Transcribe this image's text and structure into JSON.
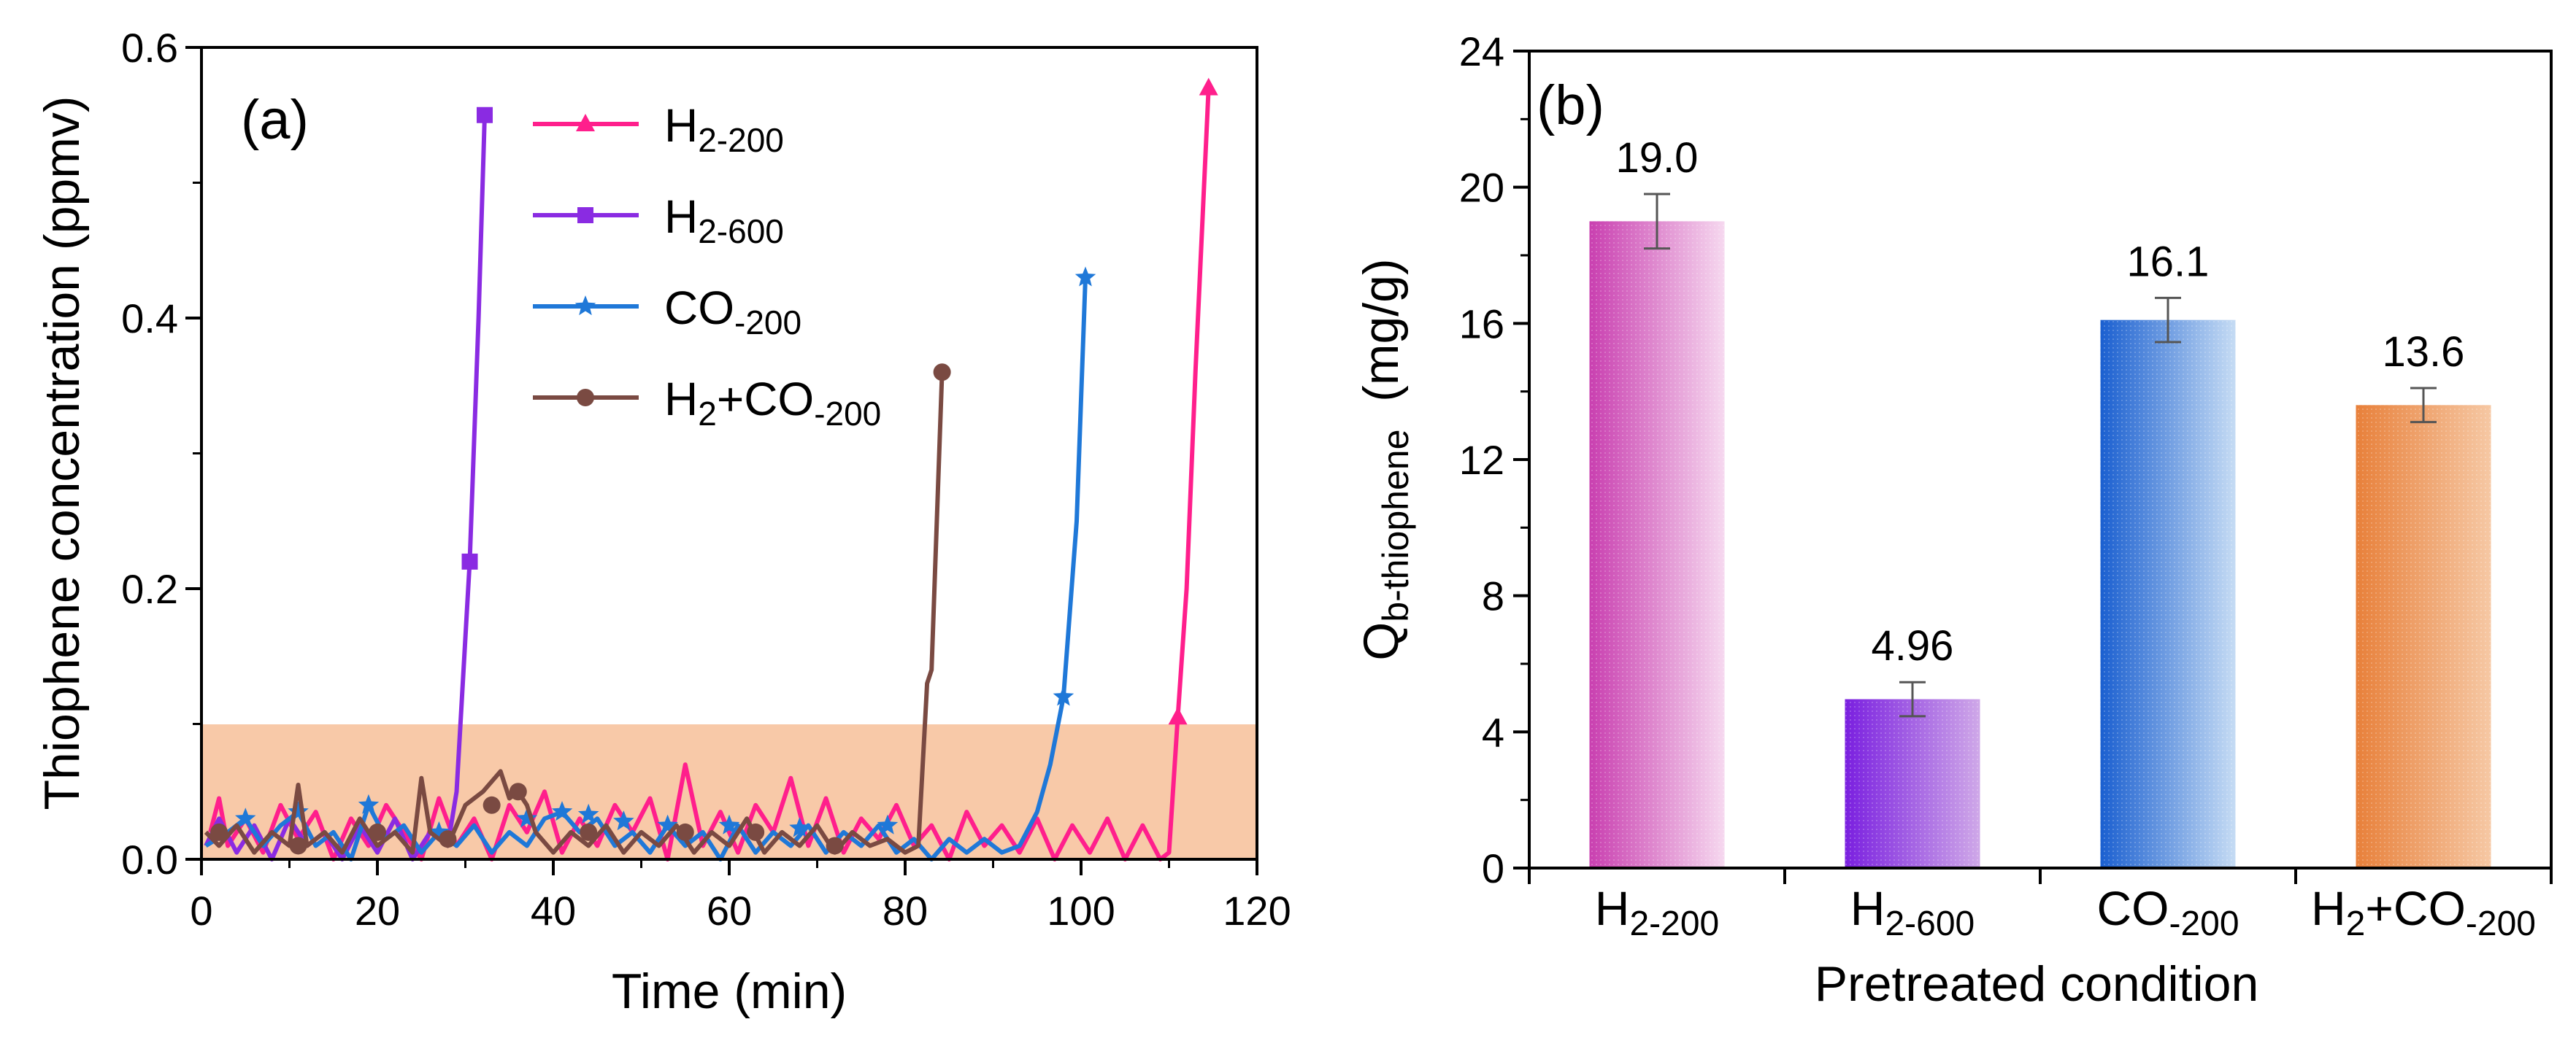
{
  "chart_data": [
    {
      "panel": "(a)",
      "type": "line",
      "xlabel": "Time (min)",
      "ylabel": "Thiophene concentration (ppmv)",
      "xlim": [
        0,
        120
      ],
      "ylim": [
        0,
        0.6
      ],
      "xticks": [
        "0",
        "20",
        "40",
        "60",
        "80",
        "100",
        "120"
      ],
      "yticks": [
        "0.0",
        "0.2",
        "0.4",
        "0.6"
      ],
      "shaded_band": {
        "y_from": 0,
        "y_to": 0.1,
        "color": "#f8c9a8"
      },
      "legend_position": "top-center",
      "series": [
        {
          "name": "H2-200",
          "legend": {
            "base": "H",
            "sub": "2-200"
          },
          "color": "#ff1f8c",
          "marker": "triangle",
          "noise": [
            [
              1,
              0.02
            ],
            [
              2,
              0.045
            ],
            [
              3,
              0.01
            ],
            [
              5,
              0.03
            ],
            [
              7,
              0.005
            ],
            [
              9,
              0.04
            ],
            [
              11,
              0.015
            ],
            [
              13,
              0.035
            ],
            [
              15,
              0.0
            ],
            [
              17,
              0.03
            ],
            [
              19,
              0.01
            ],
            [
              21,
              0.04
            ],
            [
              23,
              0.02
            ],
            [
              25,
              0.0
            ],
            [
              27,
              0.045
            ],
            [
              29,
              0.01
            ],
            [
              31,
              0.03
            ],
            [
              33,
              0.0
            ],
            [
              35,
              0.04
            ],
            [
              37,
              0.02
            ],
            [
              39,
              0.05
            ],
            [
              41,
              0.005
            ],
            [
              43,
              0.03
            ],
            [
              45,
              0.01
            ],
            [
              47,
              0.04
            ],
            [
              49,
              0.02
            ],
            [
              51,
              0.045
            ],
            [
              53,
              0.0
            ],
            [
              55,
              0.07
            ],
            [
              57,
              0.01
            ],
            [
              59,
              0.035
            ],
            [
              61,
              0.005
            ],
            [
              63,
              0.04
            ],
            [
              65,
              0.02
            ],
            [
              67,
              0.06
            ],
            [
              69,
              0.01
            ],
            [
              71,
              0.045
            ],
            [
              73,
              0.005
            ],
            [
              75,
              0.03
            ],
            [
              77,
              0.015
            ],
            [
              79,
              0.04
            ],
            [
              81,
              0.01
            ],
            [
              83,
              0.025
            ],
            [
              85,
              0.0
            ],
            [
              87,
              0.035
            ],
            [
              89,
              0.01
            ],
            [
              91,
              0.025
            ],
            [
              93,
              0.005
            ],
            [
              95,
              0.03
            ],
            [
              97,
              0.0
            ],
            [
              99,
              0.025
            ],
            [
              101,
              0.005
            ],
            [
              103,
              0.03
            ],
            [
              105,
              0.0
            ],
            [
              107,
              0.025
            ],
            [
              109,
              0.0
            ],
            [
              110,
              0.005
            ]
          ],
          "points": [
            [
              111,
              0.105
            ],
            [
              114.5,
              0.57
            ]
          ],
          "smooth": [
            [
              110,
              0.005
            ],
            [
              111,
              0.105
            ],
            [
              112,
              0.2
            ],
            [
              113,
              0.36
            ],
            [
              114.5,
              0.57
            ]
          ]
        },
        {
          "name": "H2-600",
          "legend": {
            "base": "H",
            "sub": "2-600"
          },
          "color": "#8a2be2",
          "marker": "square",
          "noise": [
            [
              0.5,
              0.01
            ],
            [
              2,
              0.03
            ],
            [
              4,
              0.005
            ],
            [
              6,
              0.025
            ],
            [
              8,
              0.0
            ],
            [
              10,
              0.03
            ],
            [
              12,
              0.01
            ],
            [
              14,
              0.02
            ],
            [
              16,
              0.0
            ],
            [
              18,
              0.025
            ],
            [
              20,
              0.005
            ],
            [
              22,
              0.03
            ],
            [
              24,
              0.0
            ],
            [
              26,
              0.02
            ],
            [
              28,
              0.01
            ]
          ],
          "points": [
            [
              30.5,
              0.22
            ],
            [
              32.2,
              0.55
            ]
          ],
          "smooth": [
            [
              28,
              0.01
            ],
            [
              29,
              0.05
            ],
            [
              30.5,
              0.22
            ],
            [
              31.5,
              0.4
            ],
            [
              32.2,
              0.55
            ]
          ]
        },
        {
          "name": "CO-200",
          "legend": {
            "base": "CO",
            "sub": "-200"
          },
          "color": "#1f78d8",
          "marker": "star",
          "noise": [
            [
              0.5,
              0.01
            ],
            [
              3,
              0.02
            ],
            [
              5,
              0.03
            ],
            [
              7,
              0.01
            ],
            [
              9,
              0.025
            ],
            [
              11,
              0.035
            ],
            [
              13,
              0.01
            ],
            [
              15,
              0.02
            ],
            [
              17,
              0.0
            ],
            [
              19,
              0.04
            ],
            [
              21,
              0.015
            ],
            [
              23,
              0.025
            ],
            [
              25,
              0.005
            ],
            [
              27,
              0.02
            ],
            [
              29,
              0.01
            ],
            [
              31,
              0.025
            ],
            [
              33,
              0.005
            ],
            [
              35,
              0.02
            ],
            [
              37,
              0.01
            ],
            [
              39,
              0.03
            ],
            [
              41,
              0.035
            ],
            [
              43,
              0.02
            ],
            [
              45,
              0.03
            ],
            [
              47,
              0.01
            ],
            [
              49,
              0.02
            ],
            [
              51,
              0.005
            ],
            [
              53,
              0.025
            ],
            [
              55,
              0.01
            ],
            [
              57,
              0.02
            ],
            [
              59,
              0.0
            ],
            [
              61,
              0.025
            ],
            [
              63,
              0.005
            ],
            [
              65,
              0.02
            ],
            [
              67,
              0.01
            ],
            [
              69,
              0.025
            ],
            [
              71,
              0.005
            ],
            [
              73,
              0.02
            ],
            [
              75,
              0.01
            ],
            [
              77,
              0.025
            ],
            [
              79,
              0.005
            ],
            [
              81,
              0.015
            ],
            [
              83,
              0.0
            ],
            [
              85,
              0.015
            ],
            [
              87,
              0.005
            ],
            [
              89,
              0.015
            ],
            [
              91,
              0.005
            ],
            [
              93,
              0.01
            ],
            [
              95,
              0.035
            ]
          ],
          "markers_noise": [
            [
              5,
              0.03
            ],
            [
              11,
              0.035
            ],
            [
              19,
              0.04
            ],
            [
              27,
              0.02
            ],
            [
              37,
              0.03
            ],
            [
              41,
              0.035
            ],
            [
              44,
              0.033
            ],
            [
              48,
              0.028
            ],
            [
              53,
              0.025
            ],
            [
              60,
              0.025
            ],
            [
              68,
              0.023
            ],
            [
              78,
              0.025
            ]
          ],
          "points": [
            [
              98,
              0.12
            ],
            [
              100.5,
              0.43
            ]
          ],
          "smooth": [
            [
              95,
              0.035
            ],
            [
              96.5,
              0.07
            ],
            [
              98,
              0.12
            ],
            [
              99.5,
              0.25
            ],
            [
              100.5,
              0.43
            ]
          ]
        },
        {
          "name": "H2+CO-200",
          "legend": {
            "base": "H",
            "sub": "2",
            "rest": "+CO",
            "sub2": "-200"
          },
          "color": "#7a4a42",
          "marker": "circle",
          "noise": [
            [
              0.5,
              0.02
            ],
            [
              2,
              0.01
            ],
            [
              4,
              0.025
            ],
            [
              6,
              0.005
            ],
            [
              8,
              0.02
            ],
            [
              10,
              0.01
            ],
            [
              11,
              0.055
            ],
            [
              12,
              0.01
            ],
            [
              14,
              0.02
            ],
            [
              16,
              0.005
            ],
            [
              18,
              0.03
            ],
            [
              20,
              0.01
            ],
            [
              22,
              0.02
            ],
            [
              24,
              0.005
            ],
            [
              25,
              0.06
            ],
            [
              26,
              0.02
            ],
            [
              28,
              0.01
            ],
            [
              30,
              0.04
            ],
            [
              32,
              0.05
            ],
            [
              34,
              0.065
            ],
            [
              35,
              0.045
            ],
            [
              36,
              0.05
            ],
            [
              37,
              0.04
            ],
            [
              38,
              0.02
            ],
            [
              40,
              0.005
            ],
            [
              42,
              0.02
            ],
            [
              44,
              0.01
            ],
            [
              46,
              0.025
            ],
            [
              48,
              0.005
            ],
            [
              50,
              0.02
            ],
            [
              52,
              0.01
            ],
            [
              54,
              0.025
            ],
            [
              56,
              0.005
            ],
            [
              58,
              0.02
            ],
            [
              60,
              0.01
            ],
            [
              62,
              0.03
            ],
            [
              64,
              0.005
            ],
            [
              66,
              0.02
            ],
            [
              68,
              0.01
            ],
            [
              70,
              0.025
            ],
            [
              72,
              0.005
            ],
            [
              74,
              0.02
            ],
            [
              76,
              0.01
            ],
            [
              78,
              0.015
            ],
            [
              80,
              0.005
            ],
            [
              81.5,
              0.01
            ]
          ],
          "markers_noise": [
            [
              2,
              0.02
            ],
            [
              11,
              0.01
            ],
            [
              20,
              0.02
            ],
            [
              28,
              0.015
            ],
            [
              33,
              0.04
            ],
            [
              36,
              0.05
            ],
            [
              44,
              0.02
            ],
            [
              55,
              0.02
            ],
            [
              63,
              0.02
            ],
            [
              72,
              0.01
            ]
          ],
          "points": [
            [
              84.2,
              0.36
            ]
          ],
          "smooth": [
            [
              81.5,
              0.01
            ],
            [
              82.5,
              0.13
            ],
            [
              83,
              0.14
            ],
            [
              84.2,
              0.36
            ]
          ]
        }
      ]
    },
    {
      "panel": "(b)",
      "type": "bar",
      "xlabel": "Pretreated condition",
      "ylabel": {
        "base": "Q",
        "sub": "b-thiophene",
        "unit": "(mg/g)"
      },
      "ylim": [
        0,
        24
      ],
      "yticks": [
        "0",
        "4",
        "8",
        "12",
        "16",
        "20",
        "24"
      ],
      "categories": [
        {
          "name": "H2-200",
          "base": "H",
          "sub": "2-200",
          "rest": "",
          "sub2": ""
        },
        {
          "name": "H2-600",
          "base": "H",
          "sub": "2-600",
          "rest": "",
          "sub2": ""
        },
        {
          "name": "CO-200",
          "base": "CO",
          "sub": "-200",
          "rest": "",
          "sub2": ""
        },
        {
          "name": "H2+CO-200",
          "base": "H",
          "sub": "2",
          "rest": "+CO",
          "sub2": "-200"
        }
      ],
      "values": [
        19.0,
        4.96,
        16.1,
        13.6
      ],
      "labels": [
        "19.0",
        "4.96",
        "16.1",
        "13.6"
      ],
      "errors": [
        0.8,
        0.5,
        0.65,
        0.5
      ],
      "colors": [
        [
          "#c93fb0",
          "#f6d8ef"
        ],
        [
          "#7a1fe0",
          "#cfa8e8"
        ],
        [
          "#1a5fd0",
          "#c6dcf4"
        ],
        [
          "#e8803a",
          "#f6c8a4"
        ]
      ]
    }
  ]
}
